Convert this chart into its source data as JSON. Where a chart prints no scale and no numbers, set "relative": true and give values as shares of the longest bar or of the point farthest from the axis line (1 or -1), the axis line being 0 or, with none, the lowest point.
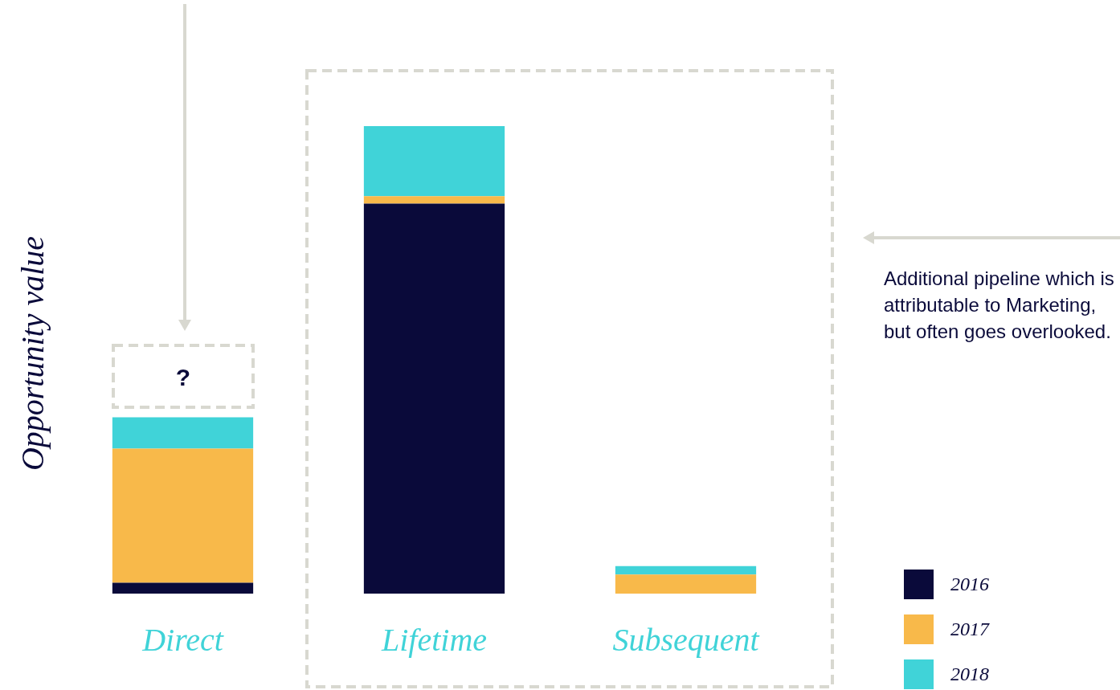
{
  "chart_data": {
    "type": "bar",
    "stacked": true,
    "relative": true,
    "ylabel": "Opportunity value",
    "categories": [
      "Direct",
      "Lifetime",
      "Subsequent"
    ],
    "series": [
      {
        "name": "2016",
        "color": "#0a0a3a",
        "values": [
          0.023,
          0.834,
          0
        ]
      },
      {
        "name": "2017",
        "color": "#f8b94a",
        "values": [
          0.287,
          0.016,
          0.041
        ]
      },
      {
        "name": "2018",
        "color": "#40d3d8",
        "values": [
          0.067,
          0.15,
          0.018
        ]
      }
    ],
    "legend": "bottom right",
    "grid": false,
    "annotations": [
      "?",
      "Additional pipeline which is attributable to Marketing, but often goes overlooked."
    ]
  }
}
